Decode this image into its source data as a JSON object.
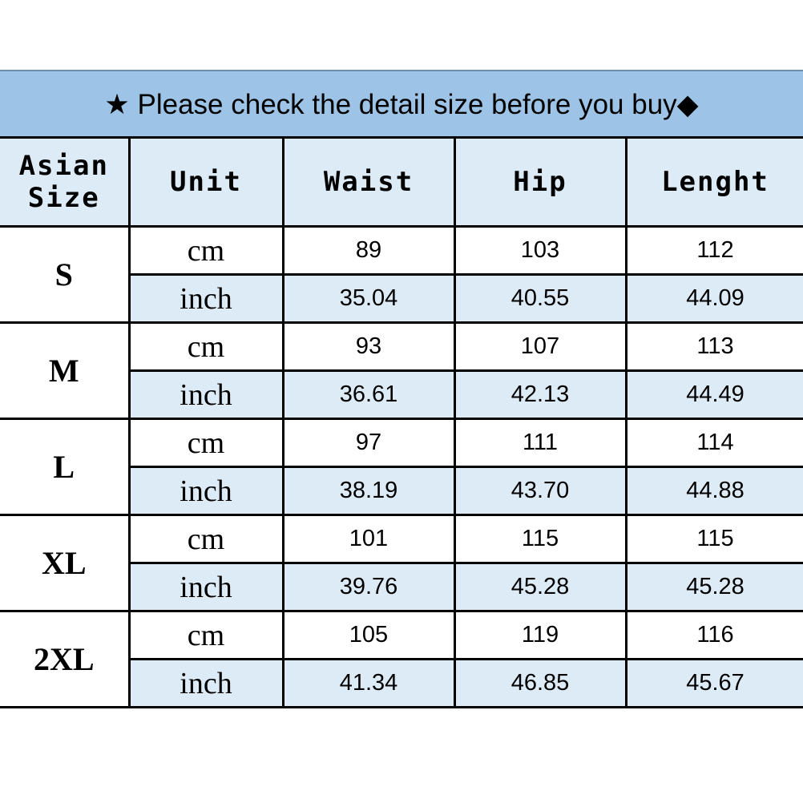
{
  "title": "★ Please check the detail size before you buy◆",
  "headers": [
    "Asian Size",
    "Unit",
    "Waist",
    "Hip",
    "Lenght"
  ],
  "rows": [
    {
      "size": "S",
      "cm": {
        "unit": "cm",
        "waist": "89",
        "hip": "103",
        "length": "112"
      },
      "inch": {
        "unit": "inch",
        "waist": "35.04",
        "hip": "40.55",
        "length": "44.09"
      }
    },
    {
      "size": "M",
      "cm": {
        "unit": "cm",
        "waist": "93",
        "hip": "107",
        "length": "113"
      },
      "inch": {
        "unit": "inch",
        "waist": "36.61",
        "hip": "42.13",
        "length": "44.49"
      }
    },
    {
      "size": "L",
      "cm": {
        "unit": "cm",
        "waist": "97",
        "hip": "111",
        "length": "114"
      },
      "inch": {
        "unit": "inch",
        "waist": "38.19",
        "hip": "43.70",
        "length": "44.88"
      }
    },
    {
      "size": "XL",
      "cm": {
        "unit": "cm",
        "waist": "101",
        "hip": "115",
        "length": "115"
      },
      "inch": {
        "unit": "inch",
        "waist": "39.76",
        "hip": "45.28",
        "length": "45.28"
      }
    },
    {
      "size": "2XL",
      "cm": {
        "unit": "cm",
        "waist": "105",
        "hip": "119",
        "length": "116"
      },
      "inch": {
        "unit": "inch",
        "waist": "41.34",
        "hip": "46.85",
        "length": "45.67"
      }
    }
  ],
  "colors": {
    "banner": "#9dc3e6",
    "header": "#ddebf7",
    "inch_row": "#ddebf7"
  }
}
